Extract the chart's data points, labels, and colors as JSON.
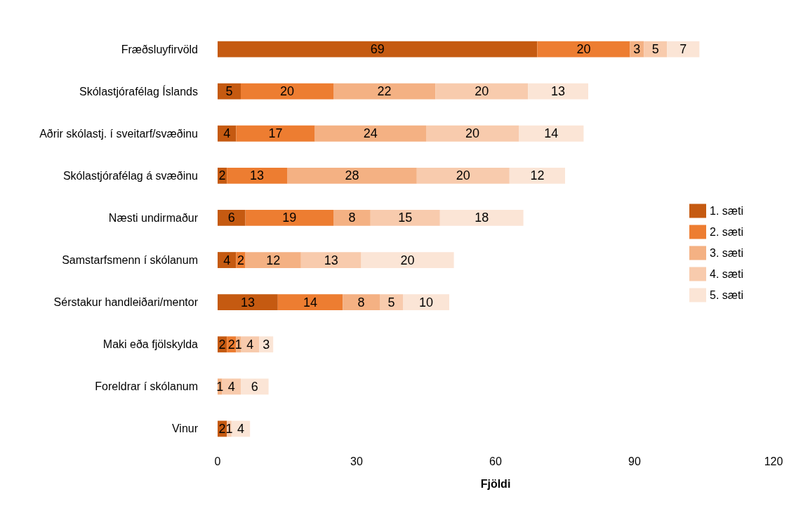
{
  "chart_data": {
    "type": "bar",
    "orientation": "horizontal",
    "stacked": true,
    "xlabel": "Fjöldi",
    "categories": [
      "Fræðsluyfirvöld",
      "Skólastjórafélag Íslands",
      "Aðrir skólastj. í sveitarf/svæðinu",
      "Skólastjórafélag á svæðinu",
      "Næsti undirmaður",
      "Samstarfsmenn í skólanum",
      "Sérstakur handleiðari/mentor",
      "Maki eða fjölskylda",
      "Foreldrar í skólanum",
      "Vinur"
    ],
    "series": [
      {
        "name": "1. sæti",
        "color": "#c55a11",
        "values": [
          69,
          5,
          4,
          2,
          6,
          4,
          13,
          2,
          null,
          2
        ]
      },
      {
        "name": "2. sæti",
        "color": "#ed7d31",
        "values": [
          20,
          20,
          17,
          13,
          19,
          2,
          14,
          2,
          null,
          null
        ]
      },
      {
        "name": "3. sæti",
        "color": "#f4b183",
        "values": [
          3,
          22,
          24,
          28,
          8,
          12,
          8,
          1,
          1,
          null
        ]
      },
      {
        "name": "4. sæti",
        "color": "#f8cbad",
        "values": [
          5,
          20,
          20,
          20,
          15,
          13,
          5,
          4,
          4,
          1
        ]
      },
      {
        "name": "5. sæti",
        "color": "#fbe5d6",
        "values": [
          7,
          13,
          14,
          12,
          18,
          20,
          10,
          3,
          6,
          4
        ]
      }
    ],
    "xlim": [
      0,
      120
    ],
    "xticks": [
      0,
      30,
      60,
      90,
      120
    ],
    "grid": false,
    "legend": "right",
    "data_labels": true
  }
}
